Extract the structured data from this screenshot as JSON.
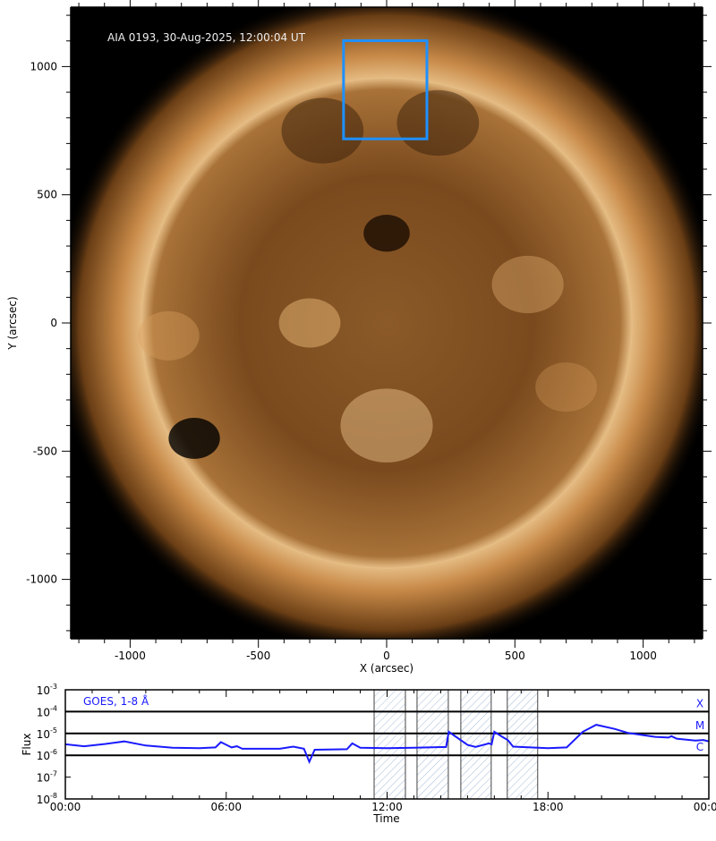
{
  "image_panel": {
    "annotation": "AIA 0193, 30-Aug-2025, 12:00:04 UT",
    "xlabel": "X (arcsec)",
    "ylabel": "Y (arcsec)",
    "xlim": [
      -1210,
      1240
    ],
    "ylim": [
      -1230,
      1230
    ],
    "xticks": [
      -1000,
      -500,
      0,
      500,
      1000
    ],
    "yticks": [
      -1000,
      -500,
      0,
      500,
      1000
    ],
    "solar_radius_arcsec": 958,
    "roi_box": {
      "x": [
        -168,
        157
      ],
      "y": [
        718,
        1101
      ],
      "color": "#1e90ff"
    },
    "colors": {
      "disk": "#8a5a2a",
      "corona": "#e0b070",
      "background": "#000000"
    }
  },
  "chart_data": {
    "type": "line",
    "xlabel": "Time",
    "ylabel": "Flux",
    "xlim_hours": [
      0,
      24
    ],
    "ylim": [
      1e-08,
      0.001
    ],
    "yscale": "log",
    "xtick_labels": [
      "00:00",
      "06:00",
      "12:00",
      "18:00",
      "00:00"
    ],
    "ytick_exponents": [
      -3,
      -4,
      -5,
      -6,
      -7,
      -8
    ],
    "legend": "GOES, 1-8 Å",
    "line_color": "#1a1aff",
    "flare_class_levels": [
      {
        "label": "X",
        "flux": 0.0001
      },
      {
        "label": "M",
        "flux": 1e-05
      },
      {
        "label": "C",
        "flux": 1e-06
      }
    ],
    "hatched_intervals": [
      [
        "11:31",
        "12:41"
      ],
      [
        "13:07",
        "14:17"
      ],
      [
        "14:45",
        "15:53"
      ],
      [
        "16:29",
        "17:37"
      ]
    ],
    "series": [
      {
        "time_hours": [
          0,
          0.7,
          1.5,
          2.2,
          3,
          4,
          5,
          5.6,
          5.8,
          6.2,
          6.4,
          6.6,
          8,
          8.5,
          8.9,
          9.1,
          9.3,
          10.5,
          10.7,
          11,
          12,
          13,
          14.2,
          14.3,
          15,
          15.3,
          15.8,
          15.9,
          16,
          16.3,
          16.5,
          16.7,
          18,
          18.7,
          19.3,
          19.8,
          20.5,
          21,
          22,
          22.5,
          22.6,
          22.8,
          23.5,
          23.8,
          24
        ],
        "flux": [
          3.2e-06,
          2.6e-06,
          3.3e-06,
          4.3e-06,
          2.8e-06,
          2.2e-06,
          2.1e-06,
          2.3e-06,
          4e-06,
          2.3e-06,
          2.6e-06,
          2e-06,
          2e-06,
          2.5e-06,
          2e-06,
          5e-07,
          1.8e-06,
          1.9e-06,
          3.5e-06,
          2.2e-06,
          2.1e-06,
          2.2e-06,
          2.4e-06,
          1.2e-05,
          3e-06,
          2.4e-06,
          3.5e-06,
          3.2e-06,
          1.2e-05,
          7e-06,
          5e-06,
          2.5e-06,
          2.1e-06,
          2.3e-06,
          1.2e-05,
          2.5e-05,
          1.6e-05,
          1.05e-05,
          7e-06,
          6.5e-06,
          7.5e-06,
          5.8e-06,
          4.7e-06,
          5e-06,
          4.3e-06
        ]
      }
    ]
  }
}
